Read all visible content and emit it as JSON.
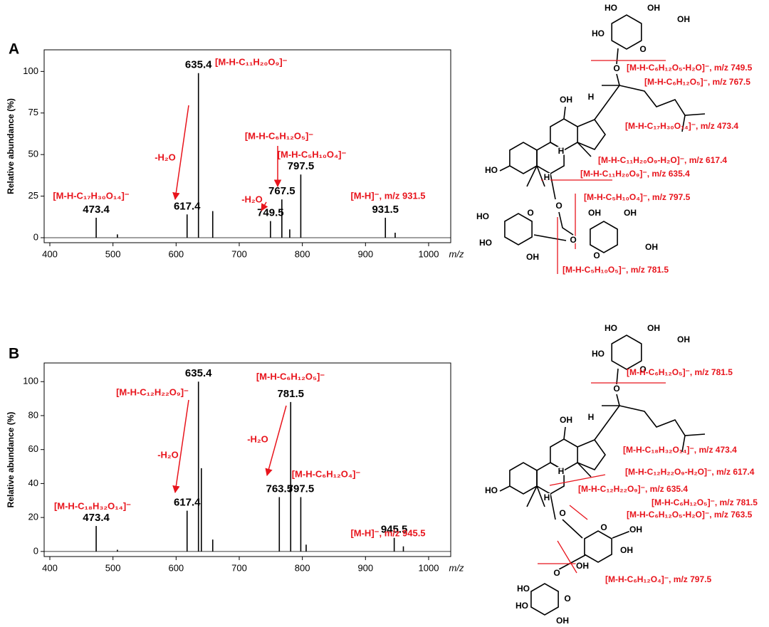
{
  "panels": [
    "A",
    "B"
  ],
  "chart_data": [
    {
      "type": "spectrum",
      "x_label": "m/z",
      "y_label": "Relative abundance (%)",
      "color": "#000000",
      "annotation_color": "#e8141c",
      "xlim": [
        400,
        1035
      ],
      "xticks": [
        400,
        500,
        600,
        700,
        800,
        900,
        1000
      ],
      "ylim": [
        -3,
        113
      ],
      "yticks": [
        0,
        25,
        50,
        75,
        100
      ],
      "series": [
        {
          "labeled": true,
          "x": [
            473.4,
            617.4,
            635.4,
            749.5,
            767.5,
            797.5,
            931.5
          ],
          "values": [
            12,
            14,
            99,
            10,
            23,
            38,
            12
          ]
        },
        {
          "labeled": false,
          "x": [
            507,
            658,
            780,
            947
          ],
          "values": [
            2,
            16,
            5,
            3
          ]
        }
      ],
      "annotations": [
        "[M-H-C₁₇H₃₀O₁₄]⁻",
        "[M-H-C₁₁H₂₀O₉]⁻",
        "-H₂O",
        "[M-H-C₆H₁₂O₅]⁻",
        "[M-H-C₅H₁₀O₄]⁻",
        "-H₂O",
        "[M-H]⁻, m/z 931.5"
      ]
    },
    {
      "type": "spectrum",
      "x_label": "m/z",
      "y_label": "Relative abundance (%)",
      "color": "#000000",
      "annotation_color": "#e8141c",
      "xlim": [
        400,
        1035
      ],
      "xticks": [
        400,
        500,
        600,
        700,
        800,
        900,
        1000
      ],
      "ylim": [
        -3,
        111
      ],
      "yticks": [
        0,
        20,
        40,
        60,
        80,
        100
      ],
      "series": [
        {
          "labeled": true,
          "x": [
            473.4,
            617.4,
            635.4,
            763.5,
            781.5,
            797.5,
            945.5
          ],
          "values": [
            15,
            24,
            100,
            32,
            88,
            32,
            8
          ]
        },
        {
          "labeled": false,
          "x": [
            507,
            640,
            658,
            806,
            960
          ],
          "values": [
            1,
            49,
            7,
            4,
            3
          ]
        }
      ],
      "annotations": [
        "[M-H-C₁₈H₃₂O₁₄]⁻",
        "[M-H-C₁₂H₂₂O₉]⁻",
        "-H₂O",
        "[M-H-C₆H₁₂O₅]⁻",
        "-H₂O",
        "[M-H-C₆H₁₂O₄]⁻",
        "[M-H]⁻, m/z 945.5"
      ]
    }
  ],
  "structures": [
    {
      "fragments": [
        "[M-H-C₆H₁₂O₅-H₂O]⁻, m/z 749.5",
        "[M-H-C₆H₁₂O₅]⁻, m/z 767.5",
        "[M-H-C₁₇H₃₀O₁₄]⁻, m/z 473.4",
        "[M-H-C₁₁H₂₀O₉-H₂O]⁻, m/z 617.4",
        "[M-H-C₁₁H₂₀O₉]⁻, m/z 635.4",
        "[M-H-C₅H₁₀O₄]⁻, m/z 797.5",
        "[M-H-C₅H₁₀O₅]⁻, m/z 781.5"
      ],
      "atoms": [
        "HO",
        "OH",
        "HO",
        "OH",
        "O",
        "O",
        "OH",
        "H",
        "H",
        "H",
        "HO",
        "O",
        "HO",
        "O",
        "O",
        "HO",
        "OH",
        "OH",
        "OH",
        "OH",
        "O"
      ]
    },
    {
      "fragments": [
        "[M-H-C₆H₁₂O₅]⁻, m/z 781.5",
        "[M-H-C₁₈H₃₂O₁₄]⁻, m/z 473.4",
        "[M-H-C₁₂H₂₂O₉-H₂O]⁻, m/z 617.4",
        "[M-H-C₁₂H₂₂O₉]⁻, m/z 635.4",
        "[M-H-C₆H₁₂O₅]⁻, m/z 781.5",
        "[M-H-C₆H₁₂O₅-H₂O]⁻, m/z 763.5",
        "[M-H-C₆H₁₂O₄]⁻, m/z 797.5"
      ],
      "atoms": [
        "HO",
        "OH",
        "HO",
        "OH",
        "O",
        "O",
        "OH",
        "H",
        "H",
        "H",
        "HO",
        "O",
        "O",
        "OH",
        "OH",
        "O",
        "OH",
        "HO",
        "HO",
        "OH",
        "O"
      ]
    }
  ]
}
